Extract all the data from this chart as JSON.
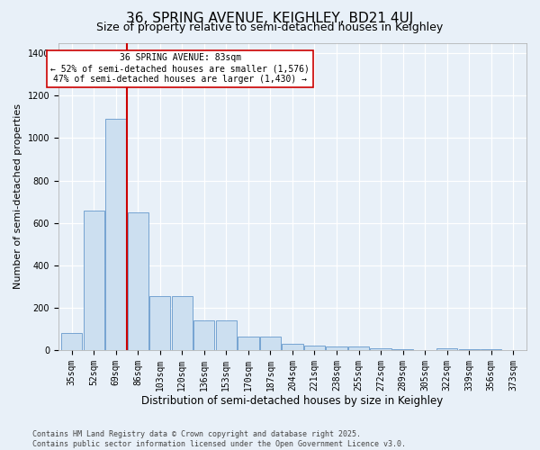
{
  "title1": "36, SPRING AVENUE, KEIGHLEY, BD21 4UJ",
  "title2": "Size of property relative to semi-detached houses in Keighley",
  "xlabel": "Distribution of semi-detached houses by size in Keighley",
  "ylabel": "Number of semi-detached properties",
  "categories": [
    "35sqm",
    "52sqm",
    "69sqm",
    "86sqm",
    "103sqm",
    "120sqm",
    "136sqm",
    "153sqm",
    "170sqm",
    "187sqm",
    "204sqm",
    "221sqm",
    "238sqm",
    "255sqm",
    "272sqm",
    "289sqm",
    "305sqm",
    "322sqm",
    "339sqm",
    "356sqm",
    "373sqm"
  ],
  "values": [
    80,
    660,
    1090,
    650,
    255,
    255,
    140,
    140,
    65,
    65,
    30,
    20,
    18,
    15,
    7,
    4,
    0,
    8,
    4,
    3,
    2
  ],
  "bar_color": "#ccdff0",
  "bar_edge_color": "#6699cc",
  "vline_x": 2.5,
  "vline_color": "#cc0000",
  "annotation_text": "36 SPRING AVENUE: 83sqm\n← 52% of semi-detached houses are smaller (1,576)\n47% of semi-detached houses are larger (1,430) →",
  "annotation_box_facecolor": "#ffffff",
  "annotation_box_edgecolor": "#cc0000",
  "ylim_max": 1450,
  "yticks": [
    0,
    200,
    400,
    600,
    800,
    1000,
    1200,
    1400
  ],
  "bg_color": "#e8f0f8",
  "title1_fontsize": 11,
  "title2_fontsize": 9,
  "xlabel_fontsize": 8.5,
  "ylabel_fontsize": 8,
  "tick_fontsize": 7,
  "annotation_fontsize": 7,
  "footer_fontsize": 6,
  "footer_text": "Contains HM Land Registry data © Crown copyright and database right 2025.\nContains public sector information licensed under the Open Government Licence v3.0."
}
